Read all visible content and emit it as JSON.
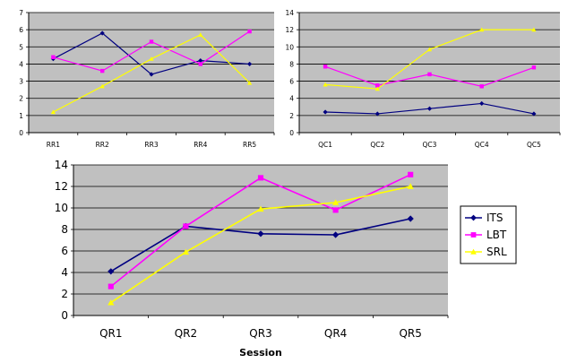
{
  "chart_data": [
    {
      "type": "line",
      "categories": [
        "RR1",
        "RR2",
        "RR3",
        "RR4",
        "RR5"
      ],
      "ylim": [
        0,
        7
      ],
      "yticks": [
        0,
        1,
        2,
        3,
        4,
        5,
        6,
        7
      ],
      "series": [
        {
          "name": "ITS",
          "values": [
            4.3,
            5.8,
            3.4,
            4.2,
            4.0
          ]
        },
        {
          "name": "LBT",
          "values": [
            4.4,
            3.6,
            5.3,
            4.0,
            5.9
          ]
        },
        {
          "name": "SRL",
          "values": [
            1.2,
            2.7,
            4.3,
            5.7,
            2.9
          ]
        }
      ]
    },
    {
      "type": "line",
      "categories": [
        "QC1",
        "QC2",
        "QC3",
        "QC4",
        "QC5"
      ],
      "ylim": [
        0,
        14
      ],
      "yticks": [
        0,
        2,
        4,
        6,
        8,
        10,
        12,
        14
      ],
      "series": [
        {
          "name": "ITS",
          "values": [
            2.4,
            2.2,
            2.8,
            3.4,
            2.2
          ]
        },
        {
          "name": "LBT",
          "values": [
            7.7,
            5.5,
            6.8,
            5.4,
            7.6
          ]
        },
        {
          "name": "SRL",
          "values": [
            5.6,
            5.1,
            9.7,
            12.0,
            12.0
          ]
        }
      ]
    },
    {
      "type": "line",
      "categories": [
        "QR1",
        "QR2",
        "QR3",
        "QR4",
        "QR5"
      ],
      "xlabel": "Session",
      "ylim": [
        0,
        14
      ],
      "yticks": [
        0,
        2,
        4,
        6,
        8,
        10,
        12,
        14
      ],
      "legend_position": "right",
      "series": [
        {
          "name": "ITS",
          "values": [
            4.1,
            8.3,
            7.6,
            7.5,
            9.0
          ]
        },
        {
          "name": "LBT",
          "values": [
            2.7,
            8.3,
            12.8,
            9.8,
            13.1
          ]
        },
        {
          "name": "SRL",
          "values": [
            1.2,
            5.9,
            9.9,
            10.5,
            12.0
          ]
        }
      ]
    }
  ],
  "styles": {
    "plot_background": "#c0c0c0",
    "grid_color": "#000000",
    "series_colors": {
      "ITS": "#000080",
      "LBT": "#ff00ff",
      "SRL": "#ffff00"
    },
    "series_markers": {
      "ITS": "diamond",
      "LBT": "square",
      "SRL": "triangle"
    }
  }
}
